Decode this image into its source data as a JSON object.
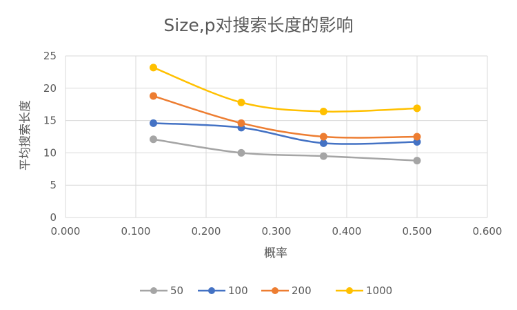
{
  "chart_data": {
    "type": "scatter",
    "title": "Size,p对搜索长度的影响",
    "xlabel": "概率",
    "ylabel": "平均搜索长度",
    "xlim": [
      0,
      0.6
    ],
    "ylim": [
      0,
      25
    ],
    "x_ticks": [
      "0.000",
      "0.100",
      "0.200",
      "0.300",
      "0.400",
      "0.500",
      "0.600"
    ],
    "y_ticks": [
      "0",
      "5",
      "10",
      "15",
      "20",
      "25"
    ],
    "grid": true,
    "smooth_lines": true,
    "legend_position": "bottom",
    "series": [
      {
        "name": "50",
        "color": "#a5a5a5",
        "x": [
          0.125,
          0.25,
          0.367,
          0.5
        ],
        "y": [
          12.1,
          10.0,
          9.5,
          8.8
        ]
      },
      {
        "name": "100",
        "color": "#4472c4",
        "x": [
          0.125,
          0.25,
          0.367,
          0.5
        ],
        "y": [
          14.6,
          13.9,
          11.5,
          11.7
        ]
      },
      {
        "name": "200",
        "color": "#ed7d31",
        "x": [
          0.125,
          0.25,
          0.367,
          0.5
        ],
        "y": [
          18.8,
          14.6,
          12.5,
          12.5
        ]
      },
      {
        "name": "1000",
        "color": "#ffc000",
        "x": [
          0.125,
          0.25,
          0.367,
          0.5
        ],
        "y": [
          23.2,
          17.8,
          16.4,
          16.9
        ]
      }
    ]
  }
}
